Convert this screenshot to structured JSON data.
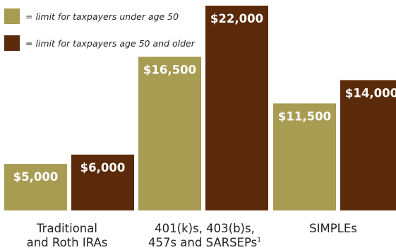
{
  "colors": {
    "under50": "#a89b52",
    "over50": "#5a2a0a",
    "label_text": "#ffffff",
    "axis_text": "#231f20"
  },
  "legend": [
    {
      "text": "= limit for taxpayers under age 50",
      "color_key": "under50"
    },
    {
      "text": "= limit for taxpayers age 50 and older",
      "color_key": "over50"
    }
  ],
  "chart_data": {
    "type": "bar",
    "categories": [
      {
        "line1": "Traditional",
        "line2": "and Roth IRAs",
        "footnote": ""
      },
      {
        "line1": "401(k)s, 403(b)s,",
        "line2": "457s and SARSEPs",
        "footnote": "1"
      },
      {
        "line1": "SIMPLEs",
        "line2": "",
        "footnote": ""
      }
    ],
    "series": [
      {
        "values": [
          5000,
          16500,
          11500
        ],
        "labels": [
          "$5,000",
          "$16,500",
          "$11,500"
        ],
        "color_key": "under50"
      },
      {
        "values": [
          6000,
          22000,
          14000
        ],
        "labels": [
          "$6,000",
          "$22,000",
          "$14,000"
        ],
        "color_key": "over50"
      }
    ],
    "ylim": [
      0,
      22000
    ],
    "grid": false,
    "legend_position": "top-left"
  }
}
